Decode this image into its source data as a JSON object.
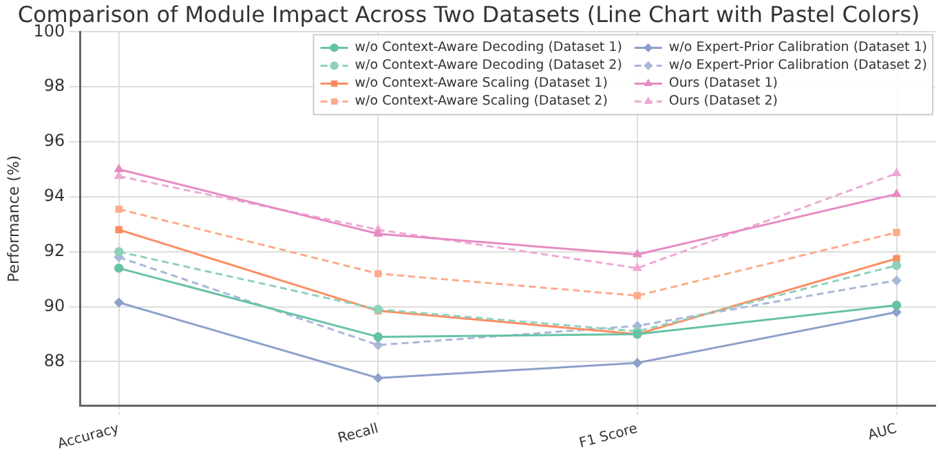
{
  "chart_data": {
    "type": "line",
    "title": "Comparison of Module Impact Across Two Datasets (Line Chart with Pastel Colors)",
    "ylabel": "Performance (%)",
    "categories": [
      "Accuracy",
      "Recall",
      "F1 Score",
      "AUC"
    ],
    "series": [
      {
        "name": "w/o Context-Aware Decoding (Dataset 1)",
        "color": "#66c2a5",
        "marker": "circle",
        "line_style": "solid",
        "values": [
          91.4,
          88.9,
          89.0,
          90.05
        ]
      },
      {
        "name": "w/o Context-Aware Decoding (Dataset 2)",
        "color": "#8fd1bc",
        "marker": "circle",
        "line_style": "dashed",
        "values": [
          92.0,
          89.9,
          89.1,
          91.5
        ]
      },
      {
        "name": "w/o Context-Aware Scaling (Dataset 1)",
        "color": "#fc8d62",
        "marker": "square",
        "line_style": "solid",
        "values": [
          92.8,
          89.85,
          89.0,
          91.75
        ]
      },
      {
        "name": "w/o Context-Aware Scaling (Dataset 2)",
        "color": "#fdab8b",
        "marker": "square",
        "line_style": "dashed",
        "values": [
          93.55,
          91.2,
          90.4,
          92.7
        ]
      },
      {
        "name": "w/o Expert-Prior Calibration (Dataset 1)",
        "color": "#8da0cb",
        "marker": "diamond",
        "line_style": "solid",
        "values": [
          90.15,
          87.4,
          87.95,
          89.8
        ]
      },
      {
        "name": "w/o Expert-Prior Calibration (Dataset 2)",
        "color": "#a9b7d8",
        "marker": "diamond",
        "line_style": "dashed",
        "values": [
          91.8,
          88.6,
          89.3,
          90.95
        ]
      },
      {
        "name": "Ours (Dataset 1)",
        "color": "#e78ac3",
        "marker": "triangle",
        "line_style": "solid",
        "values": [
          95.0,
          92.65,
          91.9,
          94.1
        ]
      },
      {
        "name": "Ours (Dataset 2)",
        "color": "#eea9d3",
        "marker": "triangle",
        "line_style": "dashed",
        "values": [
          94.75,
          92.8,
          91.4,
          94.85
        ]
      }
    ],
    "ylim": [
      86.4,
      100
    ],
    "yticks": [
      88,
      90,
      92,
      94,
      96,
      98,
      100
    ],
    "grid": true,
    "legend": "top right"
  }
}
